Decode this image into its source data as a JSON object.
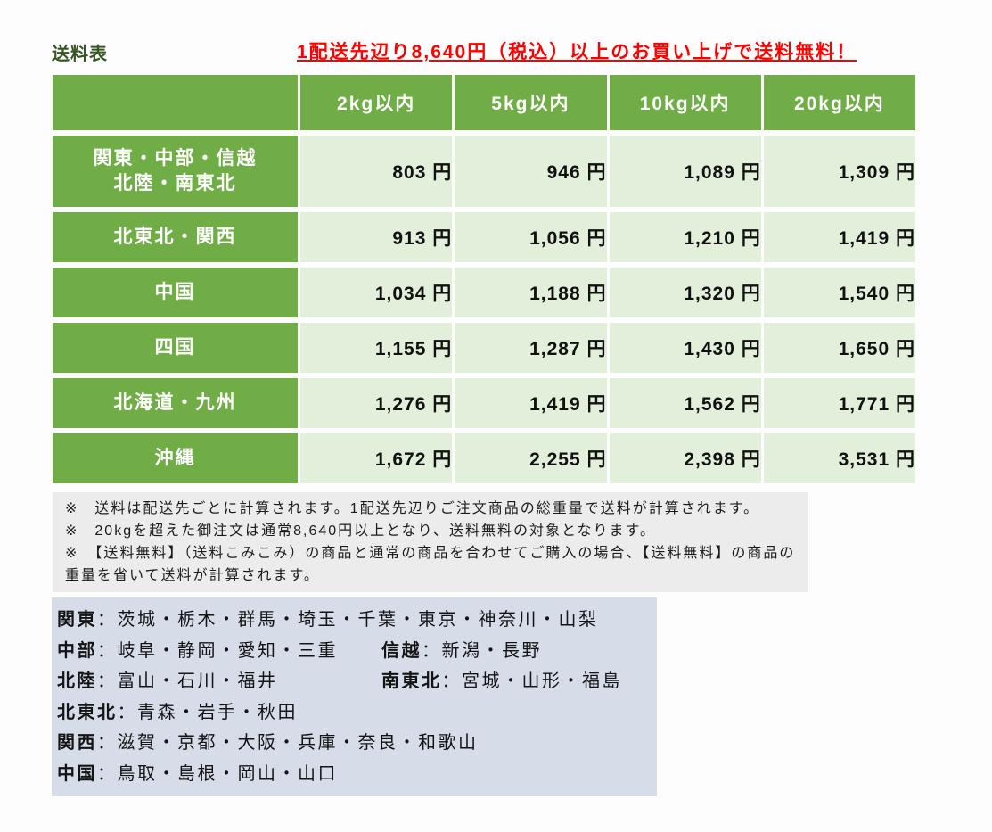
{
  "title": "送料表",
  "headline": "1配送先辺り8,640円（税込）以上のお買い上げで送料無料！",
  "table": {
    "corner": "",
    "columns": [
      "2kg以内",
      "5kg以内",
      "10kg以内",
      "20kg以内"
    ],
    "rows": [
      {
        "region": "関東・中部・信越\n北陸・南東北",
        "prices": [
          "803 円",
          "946 円",
          "1,089 円",
          "1,309 円"
        ]
      },
      {
        "region": "北東北・関西",
        "prices": [
          "913 円",
          "1,056 円",
          "1,210 円",
          "1,419 円"
        ]
      },
      {
        "region": "中国",
        "prices": [
          "1,034 円",
          "1,188 円",
          "1,320 円",
          "1,540 円"
        ]
      },
      {
        "region": "四国",
        "prices": [
          "1,155 円",
          "1,287 円",
          "1,430 円",
          "1,650 円"
        ]
      },
      {
        "region": "北海道・九州",
        "prices": [
          "1,276 円",
          "1,419 円",
          "1,562 円",
          "1,771 円"
        ]
      },
      {
        "region": "沖縄",
        "prices": [
          "1,672 円",
          "2,255 円",
          "2,398 円",
          "3,531 円"
        ]
      }
    ]
  },
  "chart_data": {
    "type": "table",
    "title": "送料表",
    "columns": [
      "2kg以内",
      "5kg以内",
      "10kg以内",
      "20kg以内"
    ],
    "row_labels": [
      "関東・中部・信越・北陸・南東北",
      "北東北・関西",
      "中国",
      "四国",
      "北海道・九州",
      "沖縄"
    ],
    "values_yen": [
      [
        803,
        946,
        1089,
        1309
      ],
      [
        913,
        1056,
        1210,
        1419
      ],
      [
        1034,
        1188,
        1320,
        1540
      ],
      [
        1155,
        1287,
        1430,
        1650
      ],
      [
        1276,
        1419,
        1562,
        1771
      ],
      [
        1672,
        2255,
        2398,
        3531
      ]
    ],
    "free_shipping_threshold_yen": 8640
  },
  "notes": [
    "※　送料は配送先ごとに計算されます。1配送先辺りご注文商品の総重量で送料が計算されます。",
    "※　20kgを超えた御注文は通常8,640円以上となり、送料無料の対象となります。",
    "※　【送料無料】（送料こみこみ）の商品と通常の商品を合わせてご購入の場合、【送料無料】の商品の重量を省いて送料が計算されます。"
  ],
  "legend": {
    "separator": "：",
    "rows": [
      [
        {
          "name": "関東",
          "prefectures": "茨城・栃木・群馬・埼玉・千葉・東京・神奈川・山梨"
        }
      ],
      [
        {
          "name": "中部",
          "prefectures": "岐阜・静岡・愛知・三重"
        },
        {
          "name": "信越",
          "prefectures": "新潟・長野"
        }
      ],
      [
        {
          "name": "北陸",
          "prefectures": "富山・石川・福井"
        },
        {
          "name": "南東北",
          "prefectures": "宮城・山形・福島"
        }
      ],
      [
        {
          "name": "北東北",
          "prefectures": "青森・岩手・秋田"
        }
      ],
      [
        {
          "name": "関西",
          "prefectures": "滋賀・京都・大阪・兵庫・奈良・和歌山"
        }
      ],
      [
        {
          "name": "中国",
          "prefectures": "鳥取・島根・岡山・山口"
        }
      ]
    ]
  },
  "colors": {
    "accent_green": "#70ad47",
    "light_green_cell": "#e2efda",
    "title_green": "#375623",
    "headline_red": "#fe0000",
    "notes_gray": "#ececec",
    "legend_blue": "#d6dde9"
  }
}
